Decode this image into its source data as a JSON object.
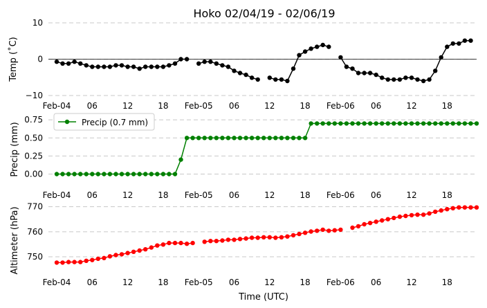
{
  "chart_data": {
    "type": "line",
    "title": "Hoko 02/04/19 - 02/06/19",
    "xlabel": "Time (UTC)",
    "x_hours": [
      0,
      1,
      2,
      3,
      4,
      5,
      6,
      7,
      8,
      9,
      10,
      11,
      12,
      13,
      14,
      15,
      16,
      17,
      18,
      19,
      20,
      21,
      22,
      23,
      24,
      25,
      26,
      27,
      28,
      29,
      30,
      31,
      32,
      33,
      34,
      35,
      36,
      37,
      38,
      39,
      40,
      41,
      42,
      43,
      44,
      45,
      46,
      47,
      48,
      49,
      50,
      51,
      52,
      53,
      54,
      55,
      56,
      57,
      58,
      59,
      60,
      61,
      62,
      63,
      64,
      65,
      66,
      67,
      68,
      69,
      70,
      71
    ],
    "x_ticks": {
      "hours": [
        0,
        6,
        12,
        18,
        24,
        30,
        36,
        42,
        48,
        54,
        60,
        66
      ],
      "labels": [
        "Feb-04",
        "06",
        "12",
        "18",
        "Feb-05",
        "06",
        "12",
        "18",
        "Feb-06",
        "06",
        "12",
        "18"
      ]
    },
    "panels": [
      {
        "name": "temperature",
        "ylabel": "Temp ($^\\circ$C)",
        "ylabel_display": "Temp (˚C)",
        "ylim": [
          -10,
          10
        ],
        "yticks": [
          -10,
          0,
          10
        ],
        "ytick_labels": [
          "−10",
          "0",
          "10"
        ],
        "zero_line": true,
        "color": "#000000",
        "series": [
          {
            "name": "Temperature",
            "values": [
              -0.7,
              -1.2,
              -1.2,
              -0.7,
              -1.2,
              -1.7,
              -2.1,
              -2.1,
              -2.1,
              -2.1,
              -1.7,
              -1.7,
              -2.1,
              -2.1,
              -2.6,
              -2.1,
              -2.1,
              -2.1,
              -2.1,
              -1.7,
              -1.2,
              0.0,
              0.0,
              null,
              -1.2,
              -0.7,
              -0.7,
              -1.2,
              -1.7,
              -2.1,
              -3.2,
              -3.8,
              -4.3,
              -5.1,
              -5.6,
              null,
              -5.1,
              -5.6,
              -5.6,
              -6.0,
              -2.6,
              1.1,
              2.1,
              2.9,
              3.4,
              3.9,
              3.4,
              null,
              0.5,
              -2.1,
              -2.6,
              -3.8,
              -3.8,
              -3.8,
              -4.3,
              -5.1,
              -5.6,
              -5.6,
              -5.6,
              -5.1,
              -5.1,
              -5.6,
              -6.0,
              -5.6,
              -3.2,
              0.5,
              3.4,
              4.3,
              4.3,
              5.1,
              5.1,
              null
            ]
          }
        ]
      },
      {
        "name": "precipitation",
        "ylabel": "Precip (mm)",
        "ylim": [
          -0.1,
          0.78
        ],
        "yticks": [
          0.0,
          0.25,
          0.5,
          0.75
        ],
        "ytick_labels": [
          "0.00",
          "0.25",
          "0.50",
          "0.75"
        ],
        "color": "#008000",
        "legend": {
          "label": "Precip (0.7 mm)",
          "position": "top-left"
        },
        "series": [
          {
            "name": "Precip (0.7 mm)",
            "values": [
              0,
              0,
              0,
              0,
              0,
              0,
              0,
              0,
              0,
              0,
              0,
              0,
              0,
              0,
              0,
              0,
              0,
              0,
              0,
              0,
              0,
              0.2,
              0.5,
              0.5,
              0.5,
              0.5,
              0.5,
              0.5,
              0.5,
              0.5,
              0.5,
              0.5,
              0.5,
              0.5,
              0.5,
              0.5,
              0.5,
              0.5,
              0.5,
              0.5,
              0.5,
              0.5,
              0.5,
              0.7,
              0.7,
              0.7,
              0.7,
              0.7,
              0.7,
              0.7,
              0.7,
              0.7,
              0.7,
              0.7,
              0.7,
              0.7,
              0.7,
              0.7,
              0.7,
              0.7,
              0.7,
              0.7,
              0.7,
              0.7,
              0.7,
              0.7,
              0.7,
              0.7,
              0.7,
              0.7,
              0.7,
              0.7
            ]
          }
        ]
      },
      {
        "name": "altimeter",
        "ylabel": "Altimeter (hPa)",
        "ylim": [
          742,
          771
        ],
        "yticks": [
          750,
          760,
          770
        ],
        "ytick_labels": [
          "750",
          "760",
          "770"
        ],
        "color": "#ff0000",
        "series": [
          {
            "name": "Altimeter",
            "values": [
              747.7,
              747.7,
              747.9,
              747.9,
              747.9,
              748.4,
              748.7,
              749.2,
              749.5,
              750.2,
              750.7,
              751.0,
              751.5,
              752.0,
              752.5,
              753.0,
              753.7,
              754.5,
              754.9,
              755.5,
              755.5,
              755.5,
              755.2,
              755.5,
              null,
              756.0,
              756.3,
              756.3,
              756.5,
              756.8,
              756.8,
              757.1,
              757.3,
              757.6,
              757.6,
              757.8,
              757.8,
              757.6,
              757.8,
              758.1,
              758.6,
              759.1,
              759.6,
              760.1,
              760.4,
              760.8,
              760.4,
              760.6,
              760.8,
              null,
              761.6,
              762.2,
              763.0,
              763.5,
              764.0,
              764.5,
              765.0,
              765.5,
              766.0,
              766.3,
              766.6,
              766.8,
              766.8,
              767.3,
              768.0,
              768.5,
              769.0,
              769.4,
              769.7,
              769.7,
              769.7,
              769.7
            ]
          }
        ]
      }
    ]
  }
}
